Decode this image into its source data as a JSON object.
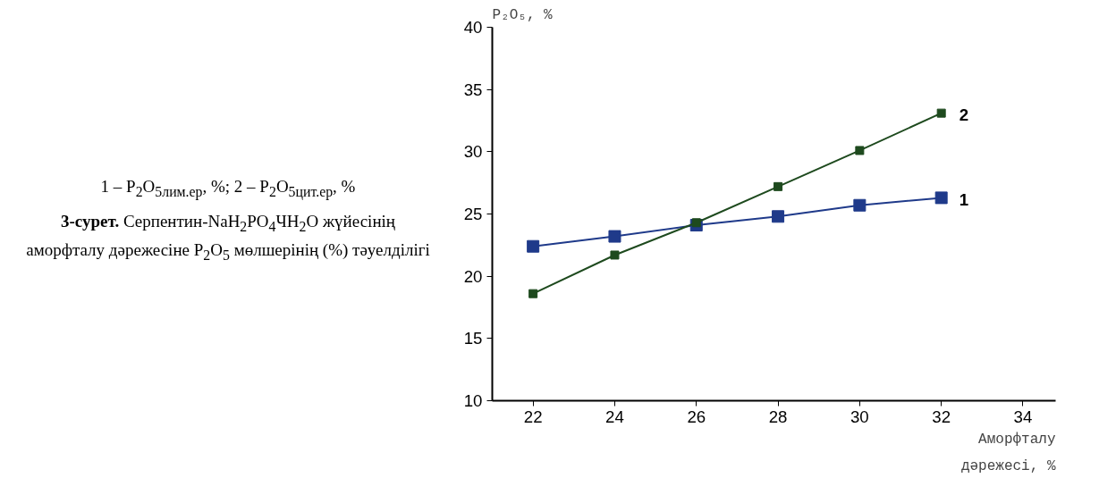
{
  "chart_data": {
    "type": "line",
    "x": [
      22,
      24,
      26,
      28,
      30,
      32
    ],
    "series": [
      {
        "name": "1",
        "color": "#1f3a8a",
        "values": [
          22.4,
          23.2,
          24.1,
          24.8,
          25.7,
          26.3
        ]
      },
      {
        "name": "2",
        "color": "#1e4a1e",
        "values": [
          18.6,
          21.7,
          24.3,
          27.2,
          30.1,
          33.1
        ]
      }
    ],
    "xlabel": "Аморфталу\nдәрежесі, %",
    "ylabel": "P₂O₅, %",
    "xlim": [
      21,
      34.8
    ],
    "ylim": [
      10,
      40
    ],
    "xticks": [
      22,
      24,
      26,
      28,
      30,
      32,
      34
    ],
    "yticks": [
      10,
      15,
      20,
      25,
      30,
      35,
      40
    ],
    "marker": "square",
    "grid": false,
    "legend": false,
    "annotations": [
      "1 – P$_{2}$O$_{5лим.ер}$, %;  2 – P$_{2}$O$_{5цит.ер}$, %",
      "3-сурет. Серпентин-NaH$_{2}$PO$_{4}$ЧH$_{2}$O жүйесінің аморфталу дәрежесіне  P$_{2}$O$_{5}$ мөлшерінің (%) тәуелділігі"
    ]
  }
}
